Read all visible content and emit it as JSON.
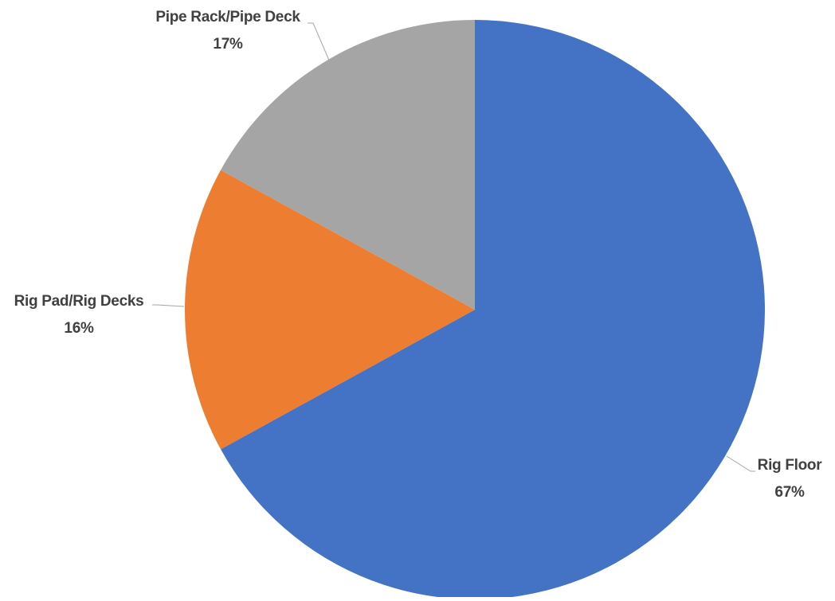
{
  "chart_data": {
    "type": "pie",
    "title": "",
    "categories": [
      "Rig Floor",
      "Rig Pad/Rig Decks",
      "Pipe Rack/Pipe Deck"
    ],
    "values": [
      67,
      16,
      17
    ],
    "labels": [
      "67%",
      "16%",
      "17%"
    ],
    "colors": [
      "#4472C4",
      "#ED7D31",
      "#A5A5A5"
    ],
    "start": "12 o'clock",
    "direction": "clockwise",
    "legend": "none"
  }
}
